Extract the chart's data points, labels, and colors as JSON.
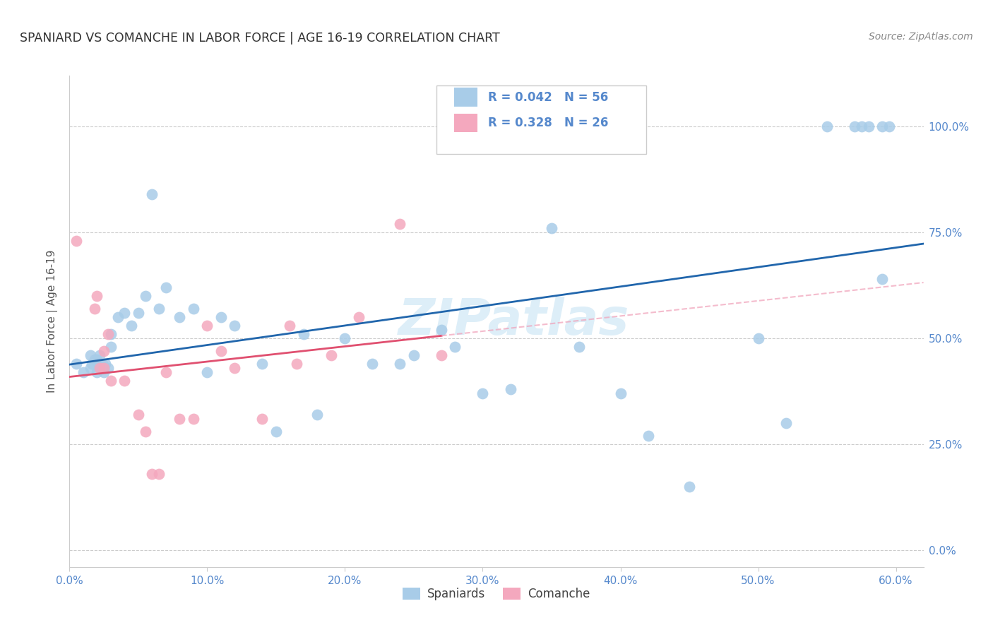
{
  "title": "SPANIARD VS COMANCHE IN LABOR FORCE | AGE 16-19 CORRELATION CHART",
  "source": "Source: ZipAtlas.com",
  "ylabel_label": "In Labor Force | Age 16-19",
  "xlim": [
    0.0,
    0.62
  ],
  "ylim": [
    -0.04,
    1.12
  ],
  "ytick_vals": [
    0.0,
    0.25,
    0.5,
    0.75,
    1.0
  ],
  "xtick_vals": [
    0.0,
    0.1,
    0.2,
    0.3,
    0.4,
    0.5,
    0.6
  ],
  "spaniards_x": [
    0.005,
    0.01,
    0.015,
    0.015,
    0.016,
    0.018,
    0.02,
    0.02,
    0.022,
    0.022,
    0.024,
    0.025,
    0.025,
    0.026,
    0.028,
    0.03,
    0.03,
    0.035,
    0.04,
    0.045,
    0.05,
    0.055,
    0.06,
    0.065,
    0.07,
    0.08,
    0.09,
    0.1,
    0.11,
    0.12,
    0.14,
    0.15,
    0.17,
    0.18,
    0.2,
    0.22,
    0.24,
    0.25,
    0.27,
    0.28,
    0.3,
    0.32,
    0.35,
    0.37,
    0.4,
    0.42,
    0.45,
    0.5,
    0.52,
    0.55,
    0.57,
    0.575,
    0.58,
    0.59,
    0.59,
    0.595
  ],
  "spaniards_y": [
    0.44,
    0.42,
    0.43,
    0.46,
    0.44,
    0.45,
    0.42,
    0.45,
    0.43,
    0.46,
    0.44,
    0.42,
    0.43,
    0.44,
    0.43,
    0.51,
    0.48,
    0.55,
    0.56,
    0.53,
    0.56,
    0.6,
    0.84,
    0.57,
    0.62,
    0.55,
    0.57,
    0.42,
    0.55,
    0.53,
    0.44,
    0.28,
    0.51,
    0.32,
    0.5,
    0.44,
    0.44,
    0.46,
    0.52,
    0.48,
    0.37,
    0.38,
    0.76,
    0.48,
    0.37,
    0.27,
    0.15,
    0.5,
    0.3,
    1.0,
    1.0,
    1.0,
    1.0,
    0.64,
    1.0,
    1.0
  ],
  "comanche_x": [
    0.005,
    0.018,
    0.02,
    0.022,
    0.025,
    0.025,
    0.028,
    0.03,
    0.04,
    0.05,
    0.055,
    0.06,
    0.065,
    0.07,
    0.08,
    0.09,
    0.1,
    0.11,
    0.12,
    0.14,
    0.16,
    0.165,
    0.19,
    0.21,
    0.24,
    0.27
  ],
  "comanche_y": [
    0.73,
    0.57,
    0.6,
    0.43,
    0.43,
    0.47,
    0.51,
    0.4,
    0.4,
    0.32,
    0.28,
    0.18,
    0.18,
    0.42,
    0.31,
    0.31,
    0.53,
    0.47,
    0.43,
    0.31,
    0.53,
    0.44,
    0.46,
    0.55,
    0.77,
    0.46
  ],
  "spaniard_R": 0.042,
  "spaniard_N": 56,
  "comanche_R": 0.328,
  "comanche_N": 26,
  "blue_scatter_color": "#a8cce8",
  "pink_scatter_color": "#f4a8be",
  "blue_line_color": "#2166ac",
  "pink_line_color": "#e05070",
  "pink_dash_color": "#f0a0b8",
  "watermark_color": "#ddeef8",
  "tick_label_color": "#5588cc",
  "title_color": "#333333",
  "source_color": "#888888"
}
